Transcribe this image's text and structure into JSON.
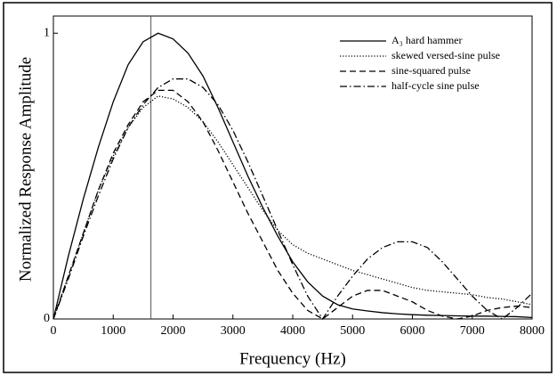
{
  "chart_data": {
    "type": "line",
    "x_label": "Frequency (Hz)",
    "y_label": "Normalized Response Amplitude",
    "x": [
      0,
      250,
      500,
      750,
      1000,
      1250,
      1500,
      1750,
      2000,
      2250,
      2500,
      2750,
      3000,
      3250,
      3500,
      3750,
      4000,
      4250,
      4500,
      4750,
      5000,
      5250,
      5500,
      5750,
      6000,
      6250,
      6500,
      6750,
      7000,
      7250,
      7500,
      7750,
      8000
    ],
    "series": [
      {
        "name": "A₃ hard hammer",
        "color": "#000000",
        "dash": "solid",
        "values": [
          0,
          0.22,
          0.42,
          0.6,
          0.76,
          0.89,
          0.97,
          1.0,
          0.98,
          0.93,
          0.85,
          0.74,
          0.62,
          0.5,
          0.39,
          0.29,
          0.2,
          0.13,
          0.08,
          0.05,
          0.035,
          0.028,
          0.022,
          0.018,
          0.015,
          0.013,
          0.012,
          0.011,
          0.01,
          0.01,
          0.009,
          0.008,
          0.005
        ]
      },
      {
        "name": "skewed versed-sine pulse",
        "color": "#000000",
        "dash": "dotted",
        "values": [
          0,
          0.15,
          0.3,
          0.45,
          0.57,
          0.67,
          0.74,
          0.78,
          0.77,
          0.74,
          0.69,
          0.62,
          0.54,
          0.46,
          0.38,
          0.31,
          0.26,
          0.23,
          0.21,
          0.19,
          0.17,
          0.155,
          0.14,
          0.125,
          0.11,
          0.1,
          0.095,
          0.09,
          0.085,
          0.075,
          0.07,
          0.06,
          0.05
        ]
      },
      {
        "name": "sine-squared pulse",
        "color": "#000000",
        "dash": "dashed",
        "values": [
          0,
          0.15,
          0.3,
          0.45,
          0.58,
          0.68,
          0.76,
          0.8,
          0.8,
          0.76,
          0.69,
          0.59,
          0.48,
          0.37,
          0.27,
          0.17,
          0.09,
          0.03,
          0.0,
          0.04,
          0.08,
          0.1,
          0.1,
          0.08,
          0.06,
          0.03,
          0.01,
          0.0,
          0.01,
          0.03,
          0.04,
          0.045,
          0.04
        ]
      },
      {
        "name": "half-cycle sine pulse",
        "color": "#000000",
        "dash": "dashdot",
        "values": [
          0,
          0.14,
          0.29,
          0.43,
          0.56,
          0.67,
          0.75,
          0.81,
          0.84,
          0.84,
          0.81,
          0.75,
          0.66,
          0.55,
          0.43,
          0.31,
          0.19,
          0.08,
          0.0,
          0.08,
          0.15,
          0.21,
          0.25,
          0.27,
          0.27,
          0.25,
          0.2,
          0.14,
          0.08,
          0.03,
          0.0,
          0.04,
          0.09
        ]
      }
    ],
    "vlines": [
      1630
    ],
    "xlim": [
      0,
      8000
    ],
    "xticks": [
      0,
      1000,
      2000,
      3000,
      4000,
      5000,
      6000,
      7000,
      8000
    ],
    "ylim": [
      0,
      1.06
    ],
    "yticks": [
      0,
      1
    ],
    "legend": "top-right",
    "grid": false
  }
}
